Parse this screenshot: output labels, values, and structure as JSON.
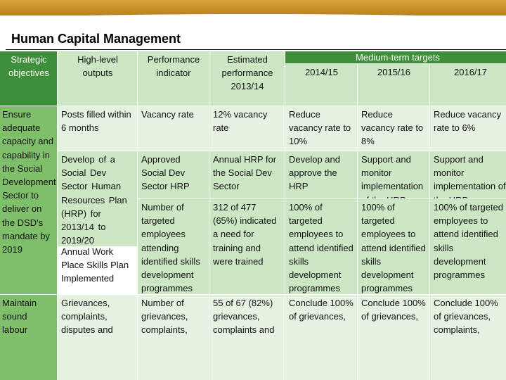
{
  "header": {
    "title": "Human Capital Management"
  },
  "table": {
    "super_header": "Medium-term targets",
    "columns": {
      "strategic": "Strategic objectives",
      "outputs": "High-level outputs",
      "indicator": "Performance indicator",
      "estimated": "Estimated performance 2013/14",
      "y1": "2014/15",
      "y2": "2015/16",
      "y3": "2016/17"
    },
    "objectives": [
      "Ensure adequate capacity and capability in the Social Development Sector to deliver on the DSD's mandate by 2019",
      "Maintain sound labour"
    ],
    "rows": [
      {
        "output": "Posts filled within 6 months",
        "indicator": "Vacancy rate",
        "estimated": "12% vacancy rate",
        "y1": "Reduce vacancy rate to 10%",
        "y2": "Reduce vacancy rate to 8%",
        "y3": "Reduce vacancy rate to 6%"
      },
      {
        "output": "Develop of a Social Dev Sector Human Resources Plan (HRP) for 2013/14 to 2019/20",
        "indicator": "Approved Social Dev Sector HRP",
        "estimated": "Annual HRP for the Social Dev Sector",
        "y1": "Develop and approve the HRP",
        "y2": "Support and monitor implementation of the HRP",
        "y3": "Support and monitor implementation of the HRP"
      },
      {
        "output": "Annual Work Place Skills Plan Implemented",
        "indicator": "Number of targeted employees attending identified skills development programmes",
        "estimated": "312 of 477 (65%) indicated a need for training and were trained",
        "y1": "100% of targeted employees to attend identified skills development programmes",
        "y2": "100% of targeted employees to attend identified skills development programmes",
        "y3": "100% of targeted employees to attend identified skills development programmes"
      },
      {
        "output": "Grievances, complaints, disputes and",
        "indicator": "Number of grievances, complaints,",
        "estimated": "55 of 67 (82%) grievances, complaints and",
        "y1": "Conclude 100% of grievances,",
        "y2": "Conclude 100% of grievances,",
        "y3": "Conclude 100% of grievances, complaints,"
      }
    ]
  },
  "colors": {
    "band": "#c9902a",
    "header_green": "#3f8f3a",
    "mid_green": "#7fbf6a",
    "light_green": "#cde6c4",
    "pale_green": "#e7f3e2"
  }
}
